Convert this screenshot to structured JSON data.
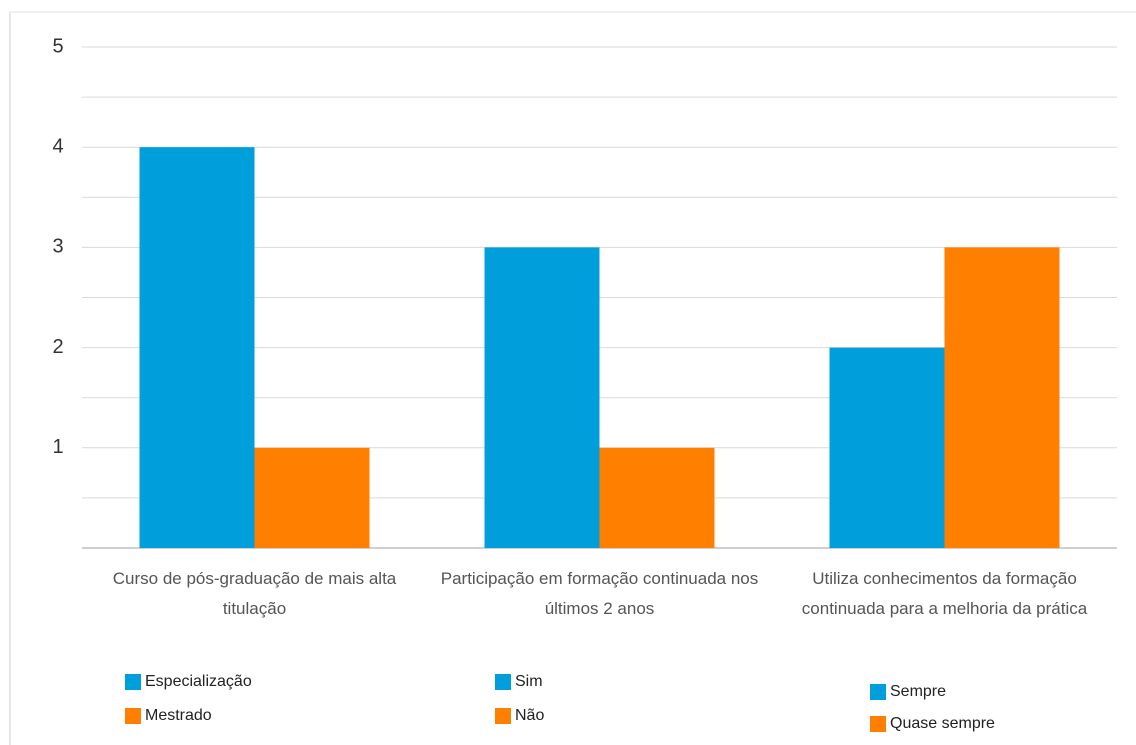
{
  "chart_data": {
    "type": "bar",
    "categories": [
      "Curso de pós-graduação de mais alta titulação",
      "Participação em formação continuada nos últimos 2 anos",
      "Utiliza conhecimentos da formação continuada para a melhoria da prática"
    ],
    "series": [
      {
        "color": "#009fdb",
        "legend": [
          "Especialização",
          "Sim",
          "Sempre"
        ],
        "values": [
          4,
          3,
          2
        ]
      },
      {
        "color": "#ff7f00",
        "legend": [
          "Mestrado",
          "Não",
          "Quase sempre"
        ],
        "values": [
          1,
          1,
          3
        ]
      }
    ],
    "ylim": [
      0,
      5
    ],
    "yticks": [
      1,
      2,
      3,
      4,
      5
    ],
    "y_minor_ticks": [
      0.5,
      1.5,
      2.5,
      3.5,
      4.5
    ],
    "grid": true
  }
}
